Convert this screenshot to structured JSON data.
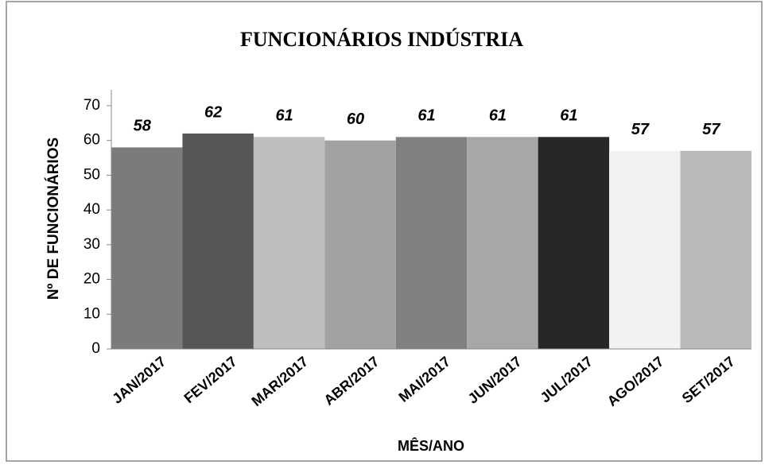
{
  "chart_data": {
    "type": "bar",
    "title": "FUNCIONÁRIOS INDÚSTRIA",
    "x_label": "MÊS/ANO",
    "y_label": "Nº DE FUNCIONÁRIOS",
    "categories": [
      "JAN/2017",
      "FEV/2017",
      "MAR/2017",
      "ABR/2017",
      "MAI/2017",
      "JUN/2017",
      "JUL/2017",
      "AGO/2017",
      "SET/2017"
    ],
    "values": [
      58,
      62,
      61,
      60,
      61,
      61,
      61,
      57,
      57
    ],
    "colors": [
      "#7b7b7b",
      "#565656",
      "#bebebe",
      "#a2a2a2",
      "#808080",
      "#a7a7a7",
      "#272727",
      "#f2f2f2",
      "#b9b9b9"
    ],
    "ylim": [
      0,
      70
    ],
    "yticks": [
      0,
      10,
      20,
      30,
      40,
      50,
      60,
      70
    ],
    "grid": false
  }
}
